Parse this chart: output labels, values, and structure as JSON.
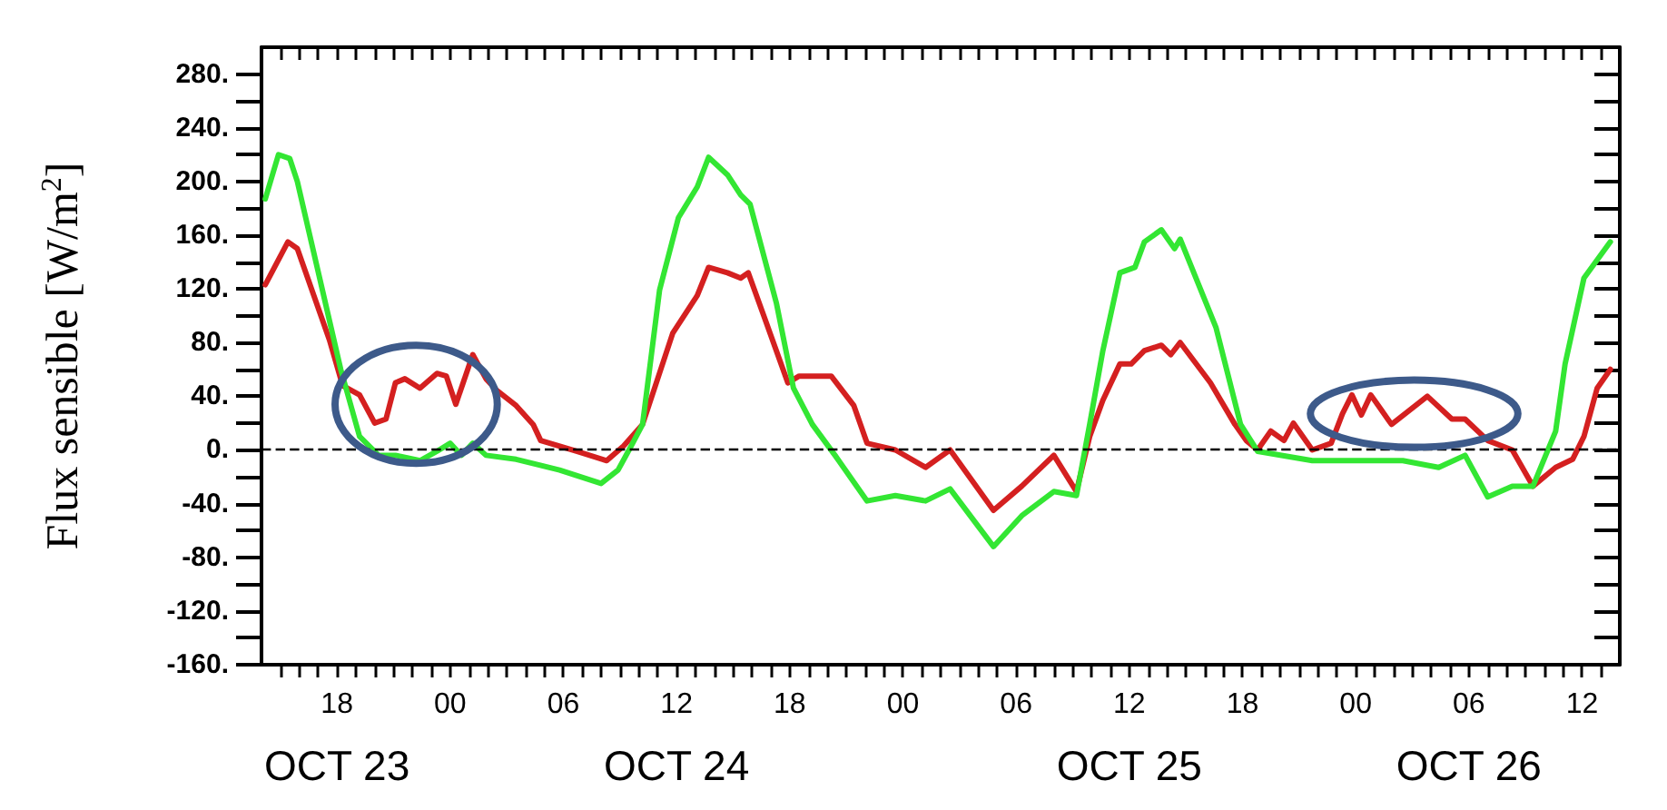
{
  "chart_data": {
    "type": "line",
    "ylabel": "Flux sensible [W/m$^{2}$]",
    "xlim": [
      "--10-23T14:00",
      "--10-26T14:00"
    ],
    "ylim": [
      -160,
      300
    ],
    "yticks": [
      {
        "value": -160,
        "label": "-160."
      },
      {
        "value": -140,
        "label": null
      },
      {
        "value": -120,
        "label": "-120."
      },
      {
        "value": -100,
        "label": null
      },
      {
        "value": -80,
        "label": "-80."
      },
      {
        "value": -60,
        "label": null
      },
      {
        "value": -40,
        "label": "-40."
      },
      {
        "value": -20,
        "label": null
      },
      {
        "value": 0,
        "label": "0."
      },
      {
        "value": 20,
        "label": null
      },
      {
        "value": 40,
        "label": "40."
      },
      {
        "value": 60,
        "label": null
      },
      {
        "value": 80,
        "label": "80."
      },
      {
        "value": 100,
        "label": null
      },
      {
        "value": 120,
        "label": "120."
      },
      {
        "value": 140,
        "label": null
      },
      {
        "value": 160,
        "label": "160."
      },
      {
        "value": 180,
        "label": null
      },
      {
        "value": 200,
        "label": "200."
      },
      {
        "value": 220,
        "label": null
      },
      {
        "value": 240,
        "label": "240."
      },
      {
        "value": 260,
        "label": null
      },
      {
        "value": 280,
        "label": "280."
      }
    ],
    "xticks": [
      {
        "value": "--10-23T15:00",
        "label": null
      },
      {
        "value": "--10-23T16:00",
        "label": null
      },
      {
        "value": "--10-23T17:00",
        "label": null
      },
      {
        "value": "--10-23T18:00",
        "label": "18"
      },
      {
        "value": "--10-23T19:00",
        "label": null
      },
      {
        "value": "--10-23T20:00",
        "label": null
      },
      {
        "value": "--10-23T21:00",
        "label": null
      },
      {
        "value": "--10-23T22:00",
        "label": null
      },
      {
        "value": "--10-23T23:00",
        "label": null
      },
      {
        "value": "--10-24T00:00",
        "label": "00"
      },
      {
        "value": "--10-24T01:00",
        "label": null
      },
      {
        "value": "--10-24T02:00",
        "label": null
      },
      {
        "value": "--10-24T03:00",
        "label": null
      },
      {
        "value": "--10-24T04:00",
        "label": null
      },
      {
        "value": "--10-24T05:00",
        "label": null
      },
      {
        "value": "--10-24T06:00",
        "label": "06"
      },
      {
        "value": "--10-24T07:00",
        "label": null
      },
      {
        "value": "--10-24T08:00",
        "label": null
      },
      {
        "value": "--10-24T09:00",
        "label": null
      },
      {
        "value": "--10-24T10:00",
        "label": null
      },
      {
        "value": "--10-24T11:00",
        "label": null
      },
      {
        "value": "--10-24T12:00",
        "label": "12"
      },
      {
        "value": "--10-24T13:00",
        "label": null
      },
      {
        "value": "--10-24T14:00",
        "label": null
      },
      {
        "value": "--10-24T15:00",
        "label": null
      },
      {
        "value": "--10-24T16:00",
        "label": null
      },
      {
        "value": "--10-24T17:00",
        "label": null
      },
      {
        "value": "--10-24T18:00",
        "label": "18"
      },
      {
        "value": "--10-24T19:00",
        "label": null
      },
      {
        "value": "--10-24T20:00",
        "label": null
      },
      {
        "value": "--10-24T21:00",
        "label": null
      },
      {
        "value": "--10-24T22:00",
        "label": null
      },
      {
        "value": "--10-24T23:00",
        "label": null
      },
      {
        "value": "--10-25T00:00",
        "label": "00"
      },
      {
        "value": "--10-25T01:00",
        "label": null
      },
      {
        "value": "--10-25T02:00",
        "label": null
      },
      {
        "value": "--10-25T03:00",
        "label": null
      },
      {
        "value": "--10-25T04:00",
        "label": null
      },
      {
        "value": "--10-25T05:00",
        "label": null
      },
      {
        "value": "--10-25T06:00",
        "label": "06"
      },
      {
        "value": "--10-25T07:00",
        "label": null
      },
      {
        "value": "--10-25T08:00",
        "label": null
      },
      {
        "value": "--10-25T09:00",
        "label": null
      },
      {
        "value": "--10-25T10:00",
        "label": null
      },
      {
        "value": "--10-25T11:00",
        "label": null
      },
      {
        "value": "--10-25T12:00",
        "label": "12"
      },
      {
        "value": "--10-25T13:00",
        "label": null
      },
      {
        "value": "--10-25T14:00",
        "label": null
      },
      {
        "value": "--10-25T15:00",
        "label": null
      },
      {
        "value": "--10-25T16:00",
        "label": null
      },
      {
        "value": "--10-25T17:00",
        "label": null
      },
      {
        "value": "--10-25T18:00",
        "label": "18"
      },
      {
        "value": "--10-25T19:00",
        "label": null
      },
      {
        "value": "--10-25T20:00",
        "label": null
      },
      {
        "value": "--10-25T21:00",
        "label": null
      },
      {
        "value": "--10-25T22:00",
        "label": null
      },
      {
        "value": "--10-25T23:00",
        "label": null
      },
      {
        "value": "--10-26T00:00",
        "label": "00"
      },
      {
        "value": "--10-26T01:00",
        "label": null
      },
      {
        "value": "--10-26T02:00",
        "label": null
      },
      {
        "value": "--10-26T03:00",
        "label": null
      },
      {
        "value": "--10-26T04:00",
        "label": null
      },
      {
        "value": "--10-26T05:00",
        "label": null
      },
      {
        "value": "--10-26T06:00",
        "label": "06"
      },
      {
        "value": "--10-26T07:00",
        "label": null
      },
      {
        "value": "--10-26T08:00",
        "label": null
      },
      {
        "value": "--10-26T09:00",
        "label": null
      },
      {
        "value": "--10-26T10:00",
        "label": null
      },
      {
        "value": "--10-26T11:00",
        "label": null
      },
      {
        "value": "--10-26T12:00",
        "label": "12"
      },
      {
        "value": "--10-26T13:00",
        "label": null
      }
    ],
    "x2lim": [
      "--10-23T14:00",
      "--10-26T14:00"
    ],
    "x2ticks": [
      {
        "value": "--10-23T18:00",
        "label": "OCT 23"
      },
      {
        "value": "--10-24T12:00",
        "label": "OCT 24"
      },
      {
        "value": "--10-25T12:00",
        "label": "OCT 25"
      },
      {
        "value": "--10-26T06:00",
        "label": "OCT 26"
      }
    ],
    "grid": false,
    "marker": "none",
    "line_style": "solid",
    "ref_lines": [
      {
        "axis": "y",
        "value": 0,
        "label": null,
        "color": "#000000",
        "line_style": "dashed"
      }
    ],
    "series": [
      {
        "color": "#d42020",
        "x": [
          "--10-23T14:12",
          "--10-23T15:24",
          "--10-23T15:54",
          "--10-23T17:36",
          "--10-23T18:18",
          "--10-23T19:12",
          "--10-23T20:00",
          "--10-23T20:36",
          "--10-23T21:06",
          "--10-23T21:36",
          "--10-23T22:24",
          "--10-23T23:18",
          "--10-23T23:48",
          "--10-24T00:18",
          "--10-24T01:12",
          "--10-24T01:54",
          "--10-24T02:30",
          "--10-24T03:30",
          "--10-24T04:24",
          "--10-24T04:48",
          "--10-24T06:42",
          "--10-24T08:18",
          "--10-24T09:12",
          "--10-24T10:12",
          "--10-24T11:48",
          "--10-24T13:06",
          "--10-24T13:42",
          "--10-24T14:42",
          "--10-24T15:24",
          "--10-24T15:48",
          "--10-24T16:36",
          "--10-24T17:54",
          "--10-24T18:30",
          "--10-24T20:12",
          "--10-24T21:24",
          "--10-24T22:06",
          "--10-24T23:36",
          "--10-25T01:12",
          "--10-25T02:30",
          "--10-25T04:48",
          "--10-25T06:18",
          "--10-25T08:00",
          "--10-25T09:12",
          "--10-25T09:54",
          "--10-25T10:36",
          "--10-25T11:30",
          "--10-25T12:06",
          "--10-25T12:48",
          "--10-25T13:42",
          "--10-25T14:12",
          "--10-25T14:42",
          "--10-25T16:18",
          "--10-25T17:36",
          "--10-25T18:12",
          "--10-25T18:48",
          "--10-25T19:30",
          "--10-25T20:12",
          "--10-25T20:42",
          "--10-25T21:42",
          "--10-25T22:42",
          "--10-25T23:18",
          "--10-25T23:48",
          "--10-26T00:18",
          "--10-26T00:48",
          "--10-26T01:54",
          "--10-26T03:48",
          "--10-26T05:06",
          "--10-26T05:48",
          "--10-26T07:00",
          "--10-26T08:18",
          "--10-26T09:24",
          "--10-26T10:36",
          "--10-26T11:30",
          "--10-26T12:06",
          "--10-26T12:48",
          "--10-26T13:30"
        ],
        "values": [
          123,
          155,
          150,
          82,
          48,
          41,
          20,
          23,
          50,
          53,
          46,
          57,
          55,
          34,
          71,
          53,
          44,
          33,
          19,
          7,
          -1,
          -8,
          3,
          19,
          87,
          115,
          136,
          132,
          128,
          132,
          101,
          50,
          55,
          55,
          33,
          5,
          0,
          -13,
          0,
          -45,
          -27,
          -4,
          -31,
          10,
          37,
          64,
          64,
          74,
          78,
          71,
          80,
          50,
          19,
          7,
          0,
          14,
          7,
          20,
          0,
          5,
          27,
          41,
          26,
          41,
          19,
          40,
          23,
          23,
          7,
          0,
          -27,
          -13,
          -7,
          10,
          46,
          60
        ]
      },
      {
        "color": "#33e633",
        "x": [
          "--10-23T14:12",
          "--10-23T14:54",
          "--10-23T15:30",
          "--10-23T15:54",
          "--10-23T18:12",
          "--10-23T19:12",
          "--10-23T20:12",
          "--10-23T21:06",
          "--10-23T22:24",
          "--10-23T23:18",
          "--10-24T00:00",
          "--10-24T00:36",
          "--10-24T01:12",
          "--10-24T01:54",
          "--10-24T03:30",
          "--10-24T05:48",
          "--10-24T08:00",
          "--10-24T08:54",
          "--10-24T09:36",
          "--10-24T10:12",
          "--10-24T11:06",
          "--10-24T12:06",
          "--10-24T13:06",
          "--10-24T13:42",
          "--10-24T14:42",
          "--10-24T15:24",
          "--10-24T15:54",
          "--10-24T17:18",
          "--10-24T18:12",
          "--10-24T19:12",
          "--10-24T20:24",
          "--10-24T22:06",
          "--10-24T23:36",
          "--10-25T01:12",
          "--10-25T02:30",
          "--10-25T04:48",
          "--10-25T06:18",
          "--10-25T08:00",
          "--10-25T09:12",
          "--10-25T09:54",
          "--10-25T10:36",
          "--10-25T11:30",
          "--10-25T12:18",
          "--10-25T12:48",
          "--10-25T13:42",
          "--10-25T14:24",
          "--10-25T14:42",
          "--10-25T16:36",
          "--10-25T17:54",
          "--10-25T18:48",
          "--10-25T21:42",
          "--10-25T23:18",
          "--10-26T02:30",
          "--10-26T04:24",
          "--10-26T05:48",
          "--10-26T07:00",
          "--10-26T08:18",
          "--10-26T09:24",
          "--10-26T10:36",
          "--10-26T11:06",
          "--10-26T12:06",
          "--10-26T13:30"
        ],
        "values": [
          187,
          220,
          217,
          200,
          60,
          10,
          -4,
          -4,
          -8,
          -1,
          5,
          -4,
          5,
          -4,
          -7,
          -15,
          -25,
          -15,
          3,
          19,
          119,
          173,
          196,
          218,
          205,
          190,
          183,
          109,
          46,
          19,
          -4,
          -38,
          -34,
          -38,
          -29,
          -72,
          -49,
          -31,
          -34,
          19,
          74,
          132,
          136,
          155,
          164,
          150,
          157,
          91,
          19,
          -1,
          -8,
          -8,
          -8,
          -13,
          -4,
          -35,
          -27,
          -27,
          14,
          64,
          128,
          155
        ]
      }
    ]
  }
}
